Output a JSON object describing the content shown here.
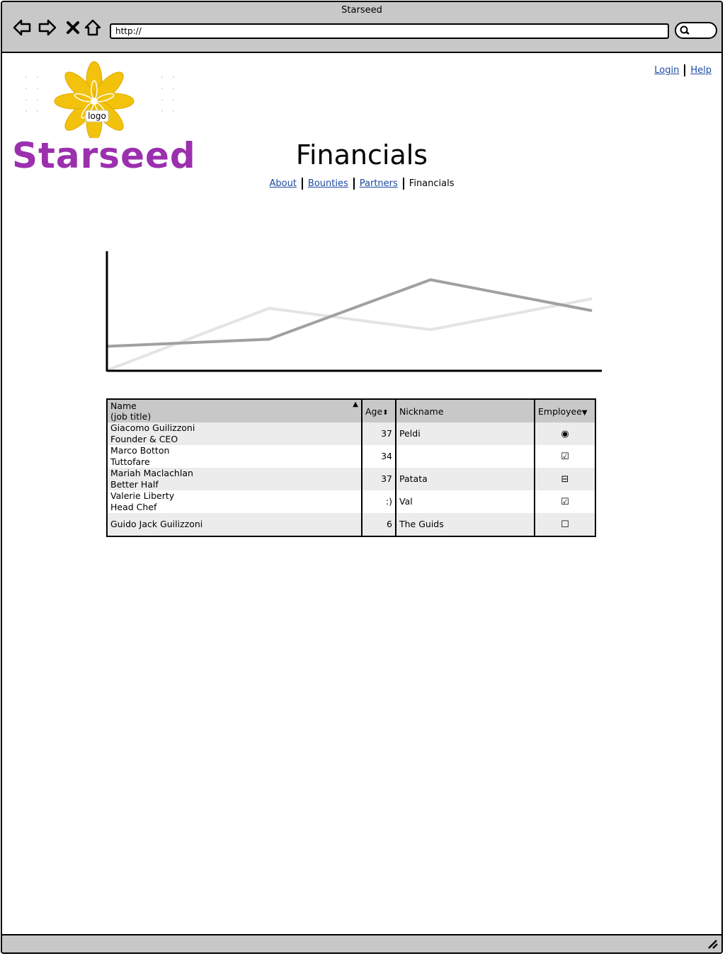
{
  "window": {
    "title": "Starseed"
  },
  "browser": {
    "url": "http://"
  },
  "logo": {
    "label": "logo",
    "brand": "Starseed"
  },
  "top_links": {
    "login": "Login",
    "help": "Help"
  },
  "page": {
    "title": "Financials"
  },
  "tabs": [
    "About",
    "Bounties",
    "Partners",
    "Financials"
  ],
  "chart_data": {
    "type": "line",
    "x": [
      0,
      1,
      2,
      3
    ],
    "series": [
      {
        "values": [
          10,
          13,
          38,
          25
        ]
      },
      {
        "values": [
          0,
          26,
          17,
          30
        ]
      }
    ],
    "colors": [
      "#a0a0a0",
      "#e4e4e4"
    ],
    "ylim": [
      0,
      50
    ]
  },
  "table": {
    "headers": {
      "name": "Name",
      "name_sub": "(job title)",
      "age": "Age",
      "nickname": "Nickname",
      "employee": "Employee"
    },
    "rows": [
      {
        "name": "Giacomo Guilizzoni",
        "title": "Founder & CEO",
        "age": "37",
        "nickname": "Peldi",
        "employee": "radio-selected"
      },
      {
        "name": "Marco Botton",
        "title": "Tuttofare",
        "age": "34",
        "nickname": "",
        "employee": "checked"
      },
      {
        "name": "Mariah Maclachlan",
        "title": "Better Half",
        "age": "37",
        "nickname": "Patata",
        "employee": "indeterminate"
      },
      {
        "name": "Valerie Liberty",
        "title": "Head Chef",
        "age": ":)",
        "nickname": "Val",
        "employee": "checked"
      },
      {
        "name": "Guido Jack Guilizzoni",
        "title": "",
        "age": "6",
        "nickname": "The Guids",
        "employee": "unchecked"
      }
    ]
  }
}
